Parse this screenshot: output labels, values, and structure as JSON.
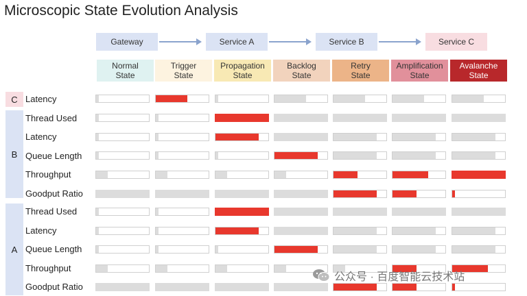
{
  "title": "Microscopic State Evolution Analysis",
  "services": [
    {
      "label": "Gateway",
      "color": "#dbe3f4"
    },
    {
      "label": "Service A",
      "color": "#dbe3f4"
    },
    {
      "label": "Service  B",
      "color": "#dbe3f4"
    },
    {
      "label": "Service  C",
      "color": "#f8dde1"
    }
  ],
  "states": [
    {
      "line1": "Normal",
      "line2": "State",
      "color": "#dff2f1",
      "text_color": "#333333"
    },
    {
      "line1": "Trigger",
      "line2": "State",
      "color": "#fdf3e0",
      "text_color": "#333333"
    },
    {
      "line1": "Propagation",
      "line2": "State",
      "color": "#f8e9b4",
      "text_color": "#333333"
    },
    {
      "line1": "Backlog",
      "line2": "State",
      "color": "#f2d3bd",
      "text_color": "#333333"
    },
    {
      "line1": "Retry",
      "line2": "State",
      "color": "#ecb488",
      "text_color": "#333333"
    },
    {
      "line1": "Amplification",
      "line2": "State",
      "color": "#e1909b",
      "text_color": "#333333"
    },
    {
      "line1": "Avalanche",
      "line2": "State",
      "color": "#b8282b",
      "text_color": "#ffffff"
    }
  ],
  "groups": [
    {
      "label": "C",
      "color": "#f8dde1",
      "rows": 1
    },
    {
      "label": "B",
      "color": "#dbe3f4",
      "rows": 5
    },
    {
      "label": "A",
      "color": "#dbe3f4",
      "rows": 5
    }
  ],
  "colors": {
    "abnormal": "#e8382d",
    "normal": "#dcdcdc",
    "border": "#cfcfcf"
  },
  "rows": [
    {
      "label": "Latency",
      "cells": [
        [
          0.05,
          "g"
        ],
        [
          0.6,
          "r"
        ],
        [
          0.05,
          "g"
        ],
        [
          0.6,
          "g"
        ],
        [
          0.6,
          "g"
        ],
        [
          0.6,
          "g"
        ],
        [
          0.6,
          "g"
        ]
      ]
    },
    {
      "label": "Thread Used",
      "cells": [
        [
          0.05,
          "g"
        ],
        [
          0.05,
          "g"
        ],
        [
          1.0,
          "r"
        ],
        [
          1.0,
          "g"
        ],
        [
          1.0,
          "g"
        ],
        [
          1.0,
          "g"
        ],
        [
          1.0,
          "g"
        ]
      ]
    },
    {
      "label": "Latency",
      "cells": [
        [
          0.05,
          "g"
        ],
        [
          0.05,
          "g"
        ],
        [
          0.82,
          "r"
        ],
        [
          1.0,
          "g"
        ],
        [
          0.82,
          "g"
        ],
        [
          0.82,
          "g"
        ],
        [
          0.82,
          "g"
        ]
      ]
    },
    {
      "label": "Queue Length",
      "cells": [
        [
          0.05,
          "g"
        ],
        [
          0.05,
          "g"
        ],
        [
          0.05,
          "g"
        ],
        [
          0.82,
          "r"
        ],
        [
          0.82,
          "g"
        ],
        [
          0.82,
          "g"
        ],
        [
          0.82,
          "g"
        ]
      ]
    },
    {
      "label": "Throughput",
      "cells": [
        [
          0.22,
          "g"
        ],
        [
          0.22,
          "g"
        ],
        [
          0.22,
          "g"
        ],
        [
          0.22,
          "g"
        ],
        [
          0.45,
          "r"
        ],
        [
          0.68,
          "r"
        ],
        [
          1.0,
          "r"
        ]
      ]
    },
    {
      "label": "Goodput Ratio",
      "cells": [
        [
          1.0,
          "g"
        ],
        [
          1.0,
          "g"
        ],
        [
          1.0,
          "g"
        ],
        [
          1.0,
          "g"
        ],
        [
          0.82,
          "r"
        ],
        [
          0.45,
          "r"
        ],
        [
          0.05,
          "r"
        ]
      ]
    },
    {
      "label": "Thread Used",
      "cells": [
        [
          0.05,
          "g"
        ],
        [
          0.05,
          "g"
        ],
        [
          1.0,
          "r"
        ],
        [
          1.0,
          "g"
        ],
        [
          1.0,
          "g"
        ],
        [
          1.0,
          "g"
        ],
        [
          1.0,
          "g"
        ]
      ]
    },
    {
      "label": "Latency",
      "cells": [
        [
          0.05,
          "g"
        ],
        [
          0.05,
          "g"
        ],
        [
          0.82,
          "r"
        ],
        [
          1.0,
          "g"
        ],
        [
          0.82,
          "g"
        ],
        [
          0.82,
          "g"
        ],
        [
          0.82,
          "g"
        ]
      ]
    },
    {
      "label": "Queue Length",
      "cells": [
        [
          0.05,
          "g"
        ],
        [
          0.05,
          "g"
        ],
        [
          0.05,
          "g"
        ],
        [
          0.82,
          "r"
        ],
        [
          0.82,
          "g"
        ],
        [
          0.82,
          "g"
        ],
        [
          0.82,
          "g"
        ]
      ]
    },
    {
      "label": "Throughput",
      "cells": [
        [
          0.22,
          "g"
        ],
        [
          0.22,
          "g"
        ],
        [
          0.22,
          "g"
        ],
        [
          0.22,
          "g"
        ],
        [
          0.22,
          "g"
        ],
        [
          0.45,
          "r"
        ],
        [
          0.68,
          "r"
        ]
      ]
    },
    {
      "label": "Goodput Ratio",
      "cells": [
        [
          1.0,
          "g"
        ],
        [
          1.0,
          "g"
        ],
        [
          1.0,
          "g"
        ],
        [
          1.0,
          "g"
        ],
        [
          0.82,
          "r"
        ],
        [
          0.45,
          "r"
        ],
        [
          0.05,
          "r"
        ]
      ]
    }
  ],
  "watermark": {
    "text": "公众号 · 百度智能云技术站",
    "icon": "wechat-icon"
  }
}
